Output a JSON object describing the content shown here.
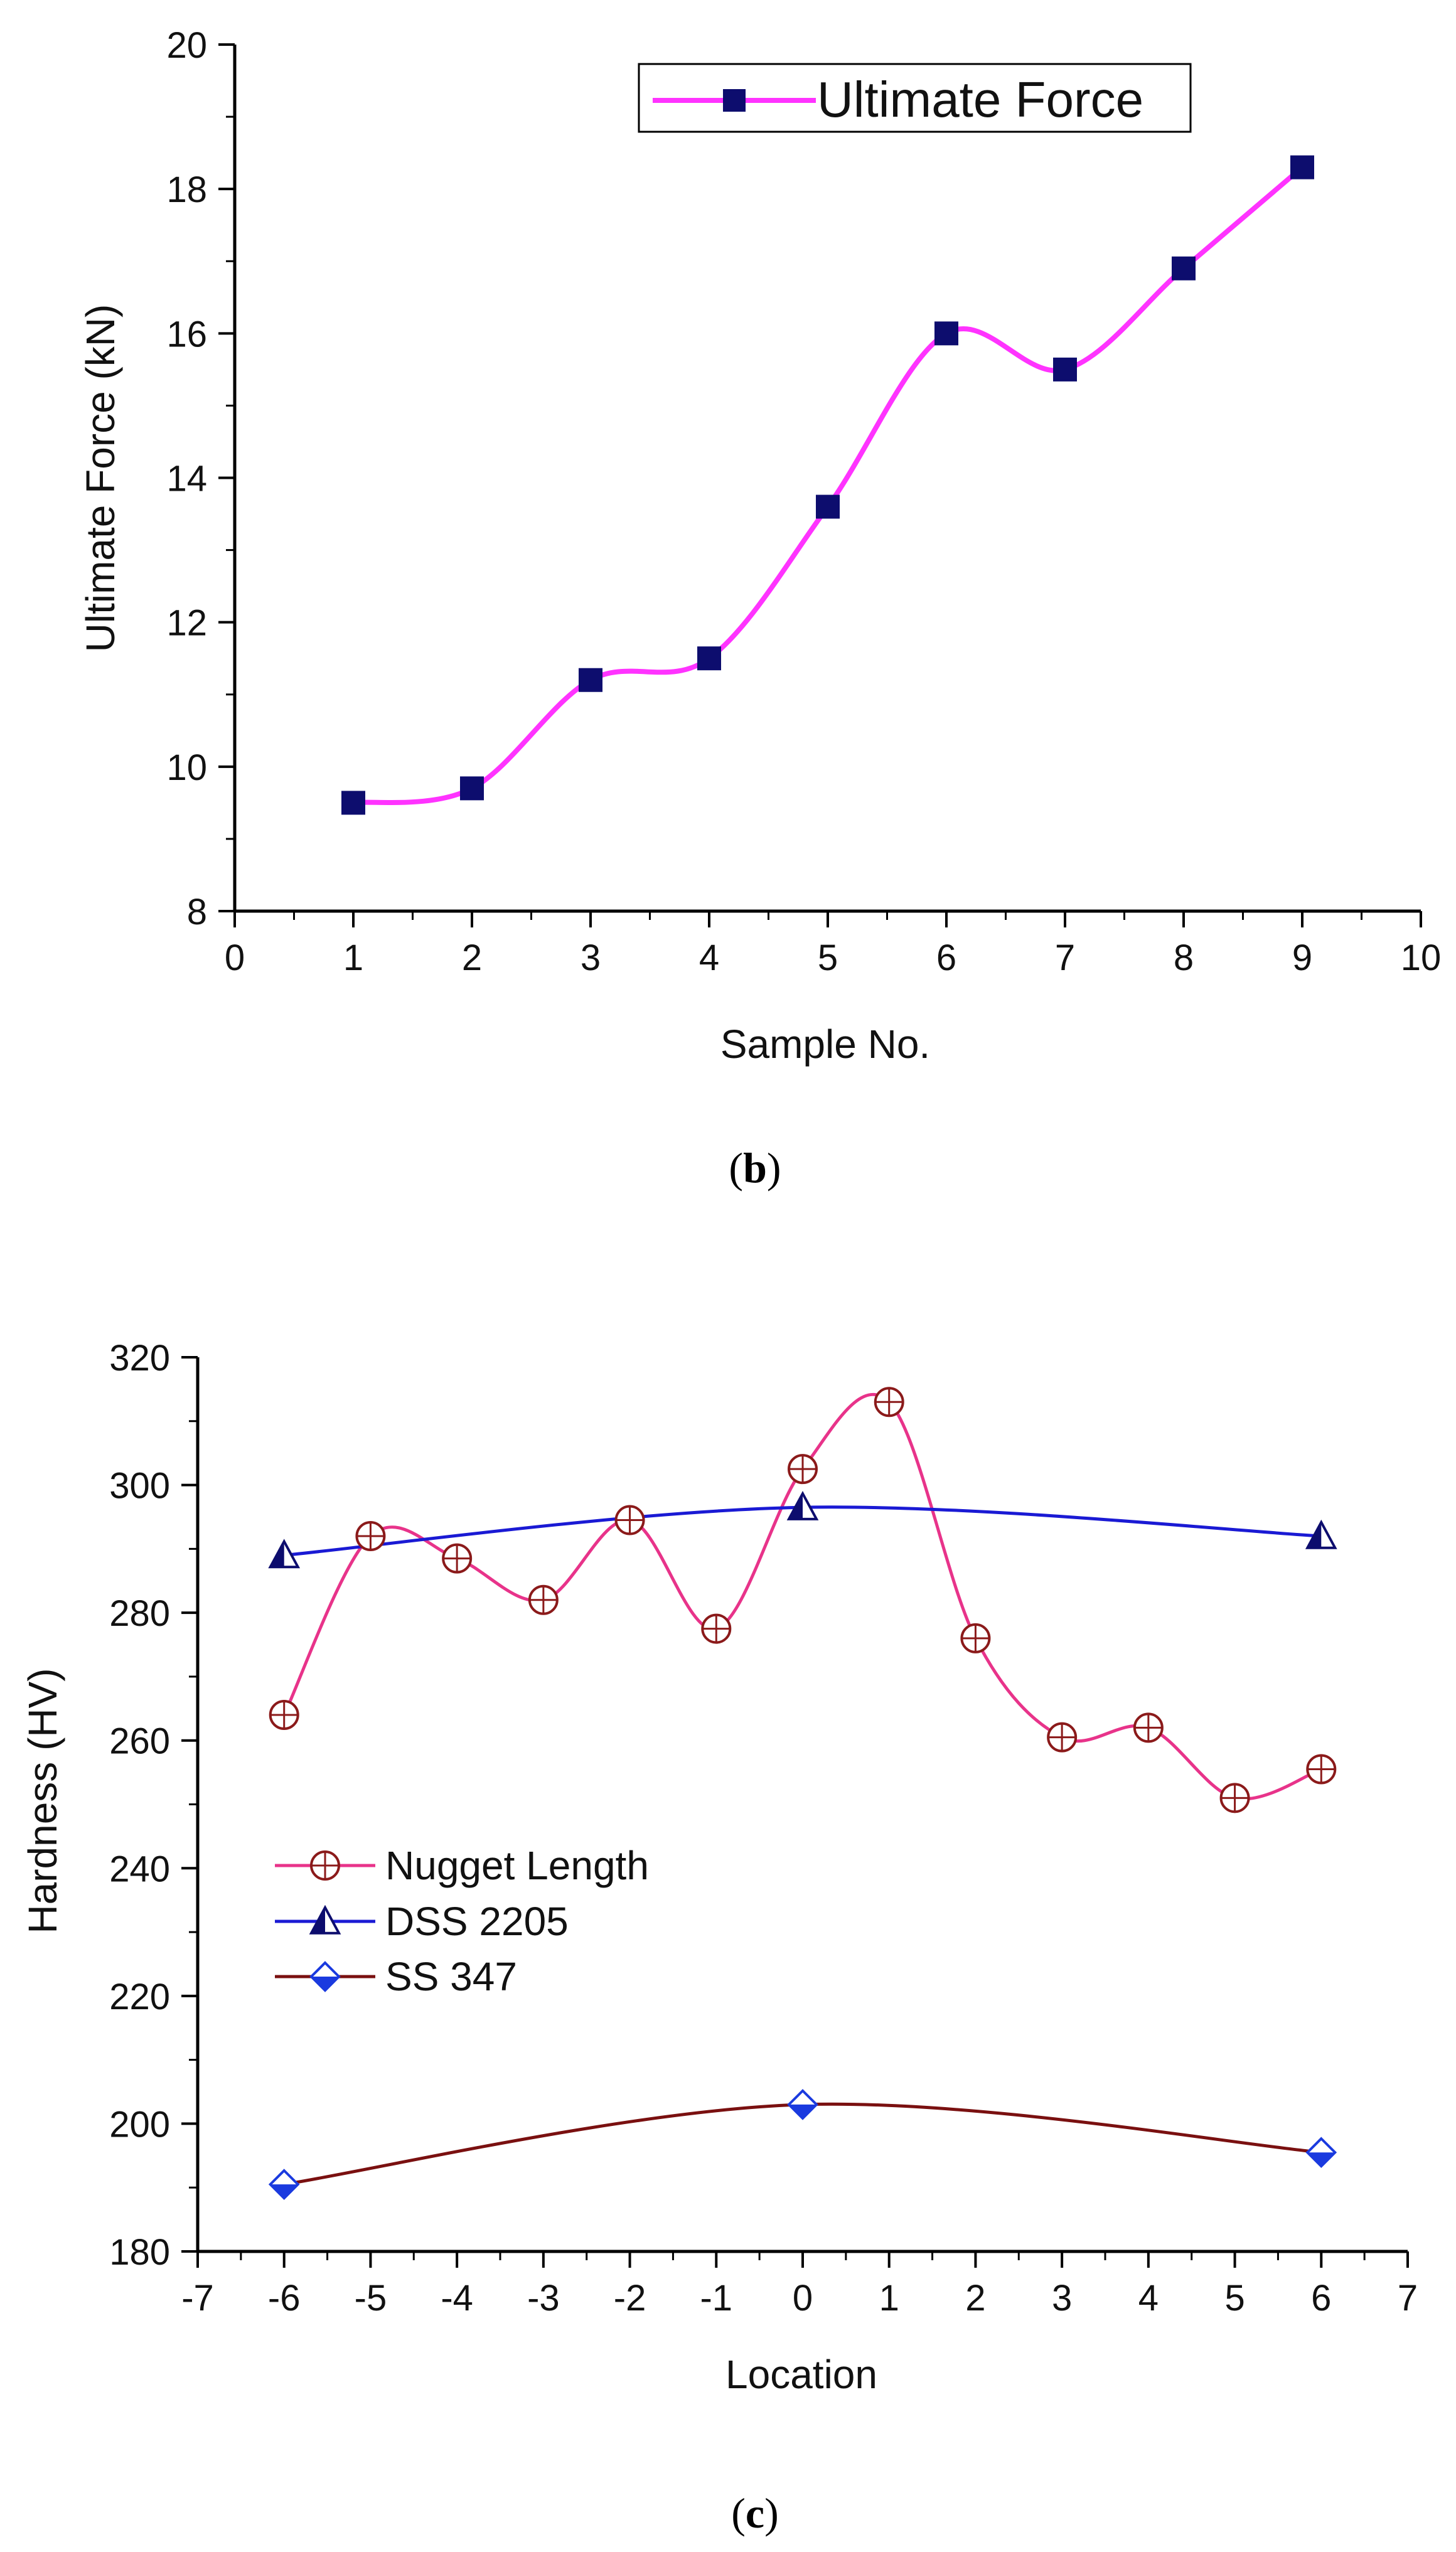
{
  "chart_data": [
    {
      "type": "line",
      "title": "",
      "caption": "(b)",
      "caption_letter": "b",
      "xlabel": "Sample No.",
      "ylabel": "Ultimate Force (kN)",
      "xlim": [
        0,
        10
      ],
      "ylim": [
        8,
        20
      ],
      "xticks": [
        0,
        1,
        2,
        3,
        4,
        5,
        6,
        7,
        8,
        9,
        10
      ],
      "yticks": [
        8,
        10,
        12,
        14,
        16,
        18,
        20
      ],
      "grid": false,
      "legend_position": "top-right",
      "series": [
        {
          "name": "Ultimate Force",
          "marker": "filled-square",
          "line_color": "#ff33ff",
          "marker_color": "#0d0d6e",
          "x": [
            1,
            2,
            3,
            4,
            5,
            6,
            7,
            8,
            9
          ],
          "y": [
            9.5,
            9.7,
            11.2,
            11.5,
            13.6,
            16.0,
            15.5,
            16.9,
            18.3
          ]
        }
      ]
    },
    {
      "type": "line",
      "title": "",
      "caption": "(c)",
      "caption_letter": "c",
      "xlabel": "Location",
      "ylabel": "Hardness (HV)",
      "xlim": [
        -7,
        7
      ],
      "ylim": [
        180,
        320
      ],
      "xticks": [
        -7,
        -6,
        -5,
        -4,
        -3,
        -2,
        -1,
        0,
        1,
        2,
        3,
        4,
        5,
        6,
        7
      ],
      "yticks": [
        180,
        200,
        220,
        240,
        260,
        280,
        300,
        320
      ],
      "grid": false,
      "legend_position": "center-left",
      "series": [
        {
          "name": "Nugget Length",
          "marker": "circle-plus",
          "line_color": "#e8338a",
          "marker_color": "#8b1a1a",
          "x": [
            -6,
            -5,
            -4,
            -3,
            -2,
            -1,
            0,
            1,
            2,
            3,
            4,
            5,
            6
          ],
          "y": [
            264,
            292,
            288.5,
            282,
            294.5,
            277.5,
            302.5,
            313,
            276,
            260.5,
            262,
            251,
            255.5
          ]
        },
        {
          "name": "DSS 2205",
          "marker": "half-filled-triangle",
          "line_color": "#1a1ad4",
          "marker_color": "#0d0d6e",
          "x": [
            -6,
            0,
            6
          ],
          "y": [
            289,
            296.5,
            292
          ]
        },
        {
          "name": "SS 347",
          "marker": "half-filled-diamond",
          "line_color": "#7a1010",
          "marker_color": "#1a3adf",
          "x": [
            -6,
            0,
            6
          ],
          "y": [
            190.5,
            203,
            195.5
          ]
        }
      ]
    }
  ]
}
